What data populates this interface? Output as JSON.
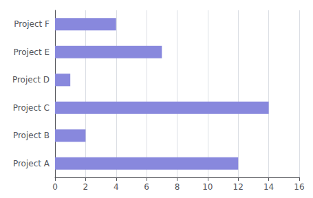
{
  "chart_data": {
    "type": "bar",
    "orientation": "horizontal",
    "categories": [
      "Project A",
      "Project B",
      "Project C",
      "Project D",
      "Project E",
      "Project F"
    ],
    "values": [
      12,
      2,
      14,
      1,
      7,
      4
    ],
    "color": "#8888dd",
    "xlim": [
      0,
      16
    ],
    "xticks": [
      0,
      2,
      4,
      6,
      8,
      10,
      12,
      14,
      16
    ],
    "grid": true
  }
}
